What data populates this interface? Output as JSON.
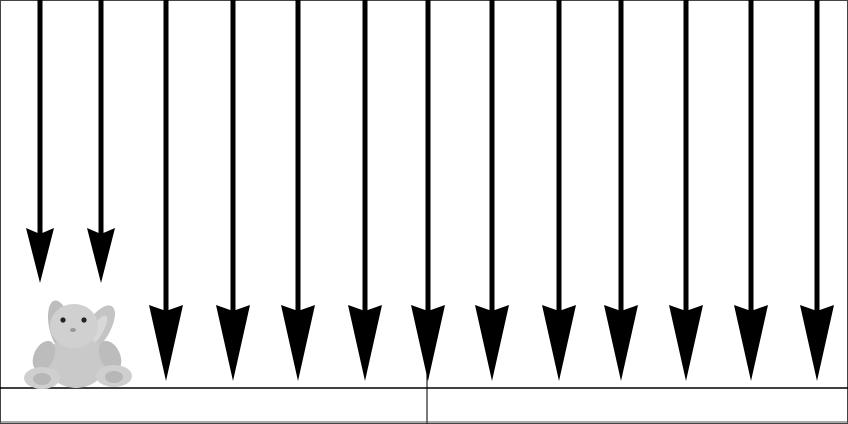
{
  "scene": {
    "arrows": [
      {
        "id": "arrow-1",
        "length": "short"
      },
      {
        "id": "arrow-2",
        "length": "short"
      },
      {
        "id": "arrow-3",
        "length": "long"
      },
      {
        "id": "arrow-4",
        "length": "long"
      },
      {
        "id": "arrow-5",
        "length": "long"
      },
      {
        "id": "arrow-6",
        "length": "long"
      },
      {
        "id": "arrow-7",
        "length": "long"
      },
      {
        "id": "arrow-8",
        "length": "long"
      },
      {
        "id": "arrow-9",
        "length": "long"
      },
      {
        "id": "arrow-10",
        "length": "long"
      },
      {
        "id": "arrow-11",
        "length": "long"
      },
      {
        "id": "arrow-12",
        "length": "long"
      },
      {
        "id": "arrow-13",
        "length": "long"
      }
    ],
    "object": {
      "name": "plush-bunny",
      "color": "#c9c9c9"
    },
    "colors": {
      "arrow": "#000000",
      "line": "#000000",
      "background": "#ffffff"
    }
  }
}
